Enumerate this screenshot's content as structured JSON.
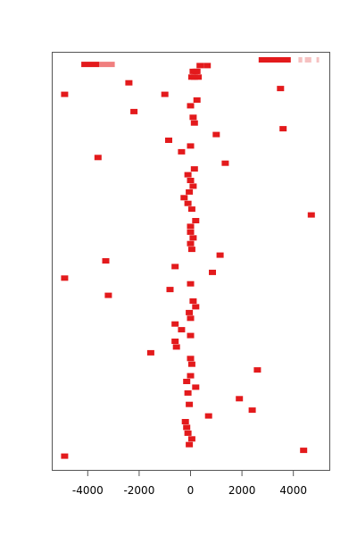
{
  "chart_data": {
    "type": "scatter",
    "title": "",
    "xlabel": "",
    "ylabel": "",
    "xlim": [
      -5000,
      5000
    ],
    "ylim": [
      0,
      70
    ],
    "y_axis_shown": false,
    "grid": false,
    "legend": "none",
    "x_ticks": [
      {
        "value": -4000,
        "label": "-4000"
      },
      {
        "value": -2000,
        "label": "-2000"
      },
      {
        "value": 0,
        "label": "0"
      },
      {
        "value": 2000,
        "label": "2000"
      },
      {
        "value": 4000,
        "label": "4000"
      }
    ],
    "colors": {
      "point": "#e31a1c",
      "range_dark": "#e31a1c",
      "range_medium": "#f07f7f",
      "range_light": "#f6c1c1",
      "axis": "#555555"
    },
    "points": [
      {
        "x": 370,
        "y": 69
      },
      {
        "x": 650,
        "y": 69
      },
      {
        "x": 100,
        "y": 68
      },
      {
        "x": 200,
        "y": 68
      },
      {
        "x": 250,
        "y": 68
      },
      {
        "x": 50,
        "y": 67
      },
      {
        "x": 150,
        "y": 67
      },
      {
        "x": 300,
        "y": 67
      },
      {
        "x": -2400,
        "y": 66
      },
      {
        "x": 3500,
        "y": 65
      },
      {
        "x": -4900,
        "y": 64
      },
      {
        "x": -1000,
        "y": 64
      },
      {
        "x": 250,
        "y": 63
      },
      {
        "x": 0,
        "y": 62
      },
      {
        "x": -2200,
        "y": 61
      },
      {
        "x": 100,
        "y": 60
      },
      {
        "x": 150,
        "y": 59
      },
      {
        "x": 3600,
        "y": 58
      },
      {
        "x": 1000,
        "y": 57
      },
      {
        "x": -850,
        "y": 56
      },
      {
        "x": 0,
        "y": 55
      },
      {
        "x": -350,
        "y": 54
      },
      {
        "x": -3600,
        "y": 53
      },
      {
        "x": 1350,
        "y": 52
      },
      {
        "x": 150,
        "y": 51
      },
      {
        "x": -100,
        "y": 50
      },
      {
        "x": 0,
        "y": 49
      },
      {
        "x": 100,
        "y": 48
      },
      {
        "x": -50,
        "y": 47
      },
      {
        "x": -250,
        "y": 46
      },
      {
        "x": -100,
        "y": 45
      },
      {
        "x": 50,
        "y": 44
      },
      {
        "x": 4700,
        "y": 43
      },
      {
        "x": 200,
        "y": 42
      },
      {
        "x": 0,
        "y": 41
      },
      {
        "x": 0,
        "y": 40
      },
      {
        "x": 100,
        "y": 39
      },
      {
        "x": 0,
        "y": 38
      },
      {
        "x": 50,
        "y": 37
      },
      {
        "x": 1150,
        "y": 36
      },
      {
        "x": -3300,
        "y": 35
      },
      {
        "x": -600,
        "y": 34
      },
      {
        "x": 850,
        "y": 33
      },
      {
        "x": -4900,
        "y": 32
      },
      {
        "x": 0,
        "y": 31
      },
      {
        "x": -800,
        "y": 30
      },
      {
        "x": -3200,
        "y": 29
      },
      {
        "x": 100,
        "y": 28
      },
      {
        "x": 200,
        "y": 27
      },
      {
        "x": -50,
        "y": 26
      },
      {
        "x": 0,
        "y": 25
      },
      {
        "x": -600,
        "y": 24
      },
      {
        "x": -350,
        "y": 23
      },
      {
        "x": 0,
        "y": 22
      },
      {
        "x": -600,
        "y": 21
      },
      {
        "x": -550,
        "y": 20
      },
      {
        "x": -1550,
        "y": 19
      },
      {
        "x": 0,
        "y": 18
      },
      {
        "x": 50,
        "y": 17
      },
      {
        "x": 2600,
        "y": 16
      },
      {
        "x": 0,
        "y": 15
      },
      {
        "x": -150,
        "y": 14
      },
      {
        "x": 200,
        "y": 13
      },
      {
        "x": -100,
        "y": 12
      },
      {
        "x": 1900,
        "y": 11
      },
      {
        "x": -50,
        "y": 10
      },
      {
        "x": 2400,
        "y": 9
      },
      {
        "x": 700,
        "y": 8
      },
      {
        "x": -200,
        "y": 7
      },
      {
        "x": -150,
        "y": 6
      },
      {
        "x": -100,
        "y": 5
      },
      {
        "x": 50,
        "y": 4
      },
      {
        "x": -50,
        "y": 3
      },
      {
        "x": 4400,
        "y": 2
      },
      {
        "x": -4900,
        "y": 1
      }
    ],
    "ranges": [
      {
        "x_start": 2650,
        "x_end": 3900,
        "y": 70,
        "shade": "range_dark"
      },
      {
        "x_start": 4200,
        "x_end": 4350,
        "y": 70,
        "shade": "range_light"
      },
      {
        "x_start": 4450,
        "x_end": 4700,
        "y": 70,
        "shade": "range_light"
      },
      {
        "x_start": 4900,
        "x_end": 5000,
        "y": 70,
        "shade": "range_light"
      },
      {
        "x_start": -4250,
        "x_end": -3550,
        "y": 69.2,
        "shade": "range_dark"
      },
      {
        "x_start": -3550,
        "x_end": -2950,
        "y": 69.2,
        "shade": "range_medium"
      }
    ]
  }
}
